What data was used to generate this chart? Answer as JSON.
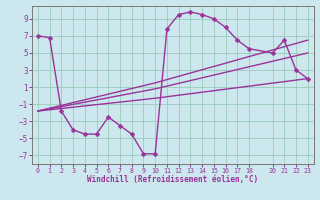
{
  "background_color": "#cce8ee",
  "grid_color": "#99ccbb",
  "line_color": "#993399",
  "xlabel": "Windchill (Refroidissement éolien,°C)",
  "yticks": [
    -7,
    -5,
    -3,
    -1,
    1,
    3,
    5,
    7,
    9
  ],
  "xticks": [
    0,
    1,
    2,
    3,
    4,
    5,
    6,
    7,
    8,
    9,
    10,
    11,
    12,
    13,
    14,
    15,
    16,
    17,
    18,
    20,
    21,
    22,
    23
  ],
  "xlim": [
    -0.5,
    23.5
  ],
  "ylim": [
    -8,
    10.5
  ],
  "zigzag_x": [
    0,
    1,
    2,
    3,
    4,
    5,
    6,
    7,
    8,
    9,
    10,
    11,
    12,
    13,
    14,
    15,
    16,
    17,
    18,
    20,
    21,
    22,
    23
  ],
  "zigzag_y": [
    7.0,
    6.8,
    -1.8,
    -4.0,
    -4.5,
    -4.5,
    -2.5,
    -3.5,
    -4.5,
    -6.8,
    -6.8,
    7.8,
    9.5,
    9.8,
    9.5,
    9.0,
    8.0,
    6.5,
    5.5,
    5.0,
    6.5,
    3.0,
    2.0
  ],
  "trend1_x": [
    0,
    10,
    23
  ],
  "trend1_y": [
    -1.8,
    1.5,
    6.5
  ],
  "trend2_x": [
    0,
    10,
    23
  ],
  "trend2_y": [
    -1.8,
    0.8,
    5.0
  ],
  "trend3_x": [
    0,
    10,
    23
  ],
  "trend3_y": [
    -1.8,
    -0.3,
    2.0
  ],
  "marker_style": "D",
  "markersize": 2.5,
  "linewidth": 1.0
}
